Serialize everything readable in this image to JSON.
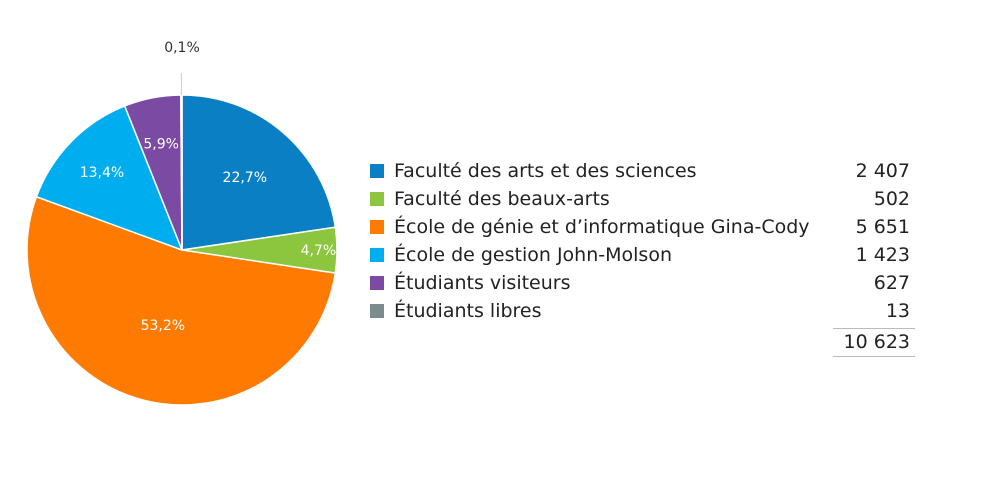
{
  "chart_data": {
    "type": "pie",
    "title": "",
    "slices": [
      {
        "label": "Faculté des arts et des sciences",
        "value": 2407,
        "percent_label": "22,7%",
        "display_value": "2 407",
        "color": "#0a7fc4"
      },
      {
        "label": "Faculté des beaux-arts",
        "value": 502,
        "percent_label": "4,7%",
        "display_value": "502",
        "color": "#8cc63e"
      },
      {
        "label": "École de génie et d’informatique Gina-Cody",
        "value": 5651,
        "percent_label": "53,2%",
        "display_value": "5 651",
        "color": "#ff7a00"
      },
      {
        "label": "École de gestion John-Molson",
        "value": 1423,
        "percent_label": "13,4%",
        "display_value": "1 423",
        "color": "#00aeef"
      },
      {
        "label": "Étudiants visiteurs",
        "value": 627,
        "percent_label": "5,9%",
        "display_value": "627",
        "color": "#7b4aa2"
      },
      {
        "label": "Étudiants libres",
        "value": 13,
        "percent_label": "0,1%",
        "display_value": "13",
        "color": "#7a8c8e"
      }
    ],
    "total": 10623,
    "total_label": "10 623",
    "legend_placement": "right"
  }
}
